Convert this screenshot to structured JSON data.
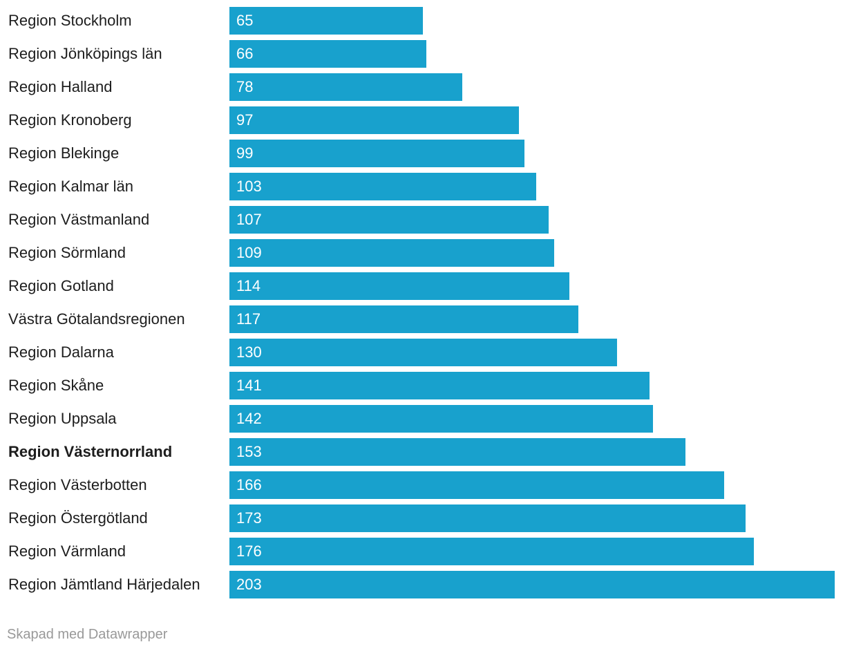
{
  "chart_data": {
    "type": "bar",
    "orientation": "horizontal",
    "categories": [
      "Region Stockholm",
      "Region Jönköpings län",
      "Region Halland",
      "Region Kronoberg",
      "Region Blekinge",
      "Region Kalmar län",
      "Region Västmanland",
      "Region Sörmland",
      "Region Gotland",
      "Västra Götalandsregionen",
      "Region Dalarna",
      "Region Skåne",
      "Region Uppsala",
      "Region Västernorrland",
      "Region Västerbotten",
      "Region Östergötland",
      "Region Värmland",
      "Region Jämtland Härjedalen"
    ],
    "values": [
      65,
      66,
      78,
      97,
      99,
      103,
      107,
      109,
      114,
      117,
      130,
      141,
      142,
      153,
      166,
      173,
      176,
      203
    ],
    "highlighted_category": "Region Västernorrland",
    "xlim": [
      0,
      203
    ],
    "grid": false,
    "bar_color": "#18a1cd",
    "value_label_color": "#ffffff"
  },
  "footer": {
    "credit": "Skapad med Datawrapper"
  }
}
